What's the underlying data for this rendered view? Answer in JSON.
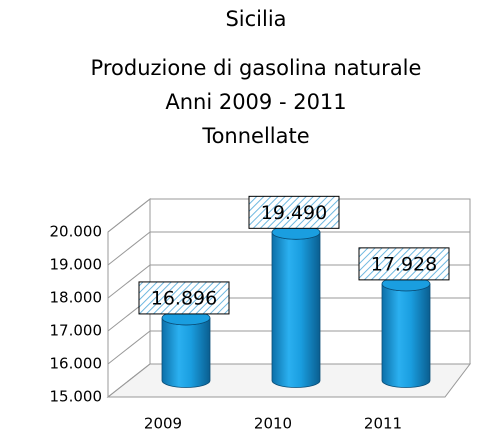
{
  "chart_data": {
    "type": "bar3d",
    "title": [
      "Sicilia",
      "Produzione  di gasolina naturale",
      "Anni 2009 - 2011",
      "Tonnellate"
    ],
    "categories": [
      "2009",
      "2010",
      "2011"
    ],
    "values": [
      16896,
      19490,
      17928
    ],
    "value_labels": [
      "16.896",
      "19.490",
      "17.928"
    ],
    "color": "#1a9ee0",
    "ylim": [
      15000,
      20000
    ],
    "yticks": [
      {
        "value": 15000,
        "label": "15.000"
      },
      {
        "value": 16000,
        "label": "16.000"
      },
      {
        "value": 17000,
        "label": "17.000"
      },
      {
        "value": 18000,
        "label": "18.000"
      },
      {
        "value": 19000,
        "label": "19.000"
      },
      {
        "value": 20000,
        "label": "20.000"
      }
    ],
    "grid": true
  }
}
